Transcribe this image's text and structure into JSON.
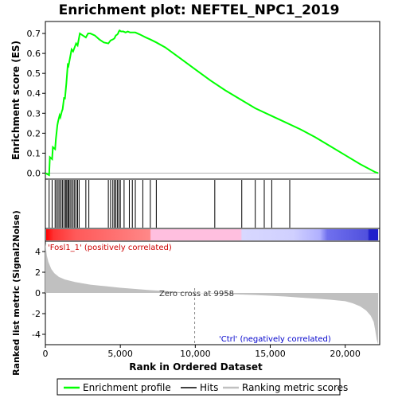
{
  "chart_data": {
    "type": "line",
    "title": "Enrichment plot: NEFTEL_NPC1_2019",
    "panels": {
      "es": {
        "ylabel": "Enrichment score (ES)",
        "ylim": [
          -0.03,
          0.76
        ],
        "yticks": [
          0.0,
          0.1,
          0.2,
          0.3,
          0.4,
          0.5,
          0.6,
          0.7
        ],
        "ytick_labels": [
          "0.0",
          "0.1",
          "0.2",
          "0.3",
          "0.4",
          "0.5",
          "0.6",
          "0.7"
        ],
        "grid": false
      },
      "metric": {
        "ylabel": "Ranked list metric (Signal2Noise)",
        "ylim": [
          -5,
          5
        ],
        "yticks": [
          -4,
          -2,
          0,
          2,
          4
        ],
        "ytick_labels": [
          "-4",
          "-2",
          "0",
          "2",
          "4"
        ]
      }
    },
    "xlabel": "Rank in Ordered Dataset",
    "xlim": [
      0,
      22300
    ],
    "xticks": [
      0,
      5000,
      10000,
      15000,
      20000
    ],
    "xtick_labels": [
      "0",
      "5,000",
      "10,000",
      "15,000",
      "20,000"
    ],
    "series": [
      {
        "name": "Enrichment profile",
        "color": "#00ff00",
        "x": [
          0,
          250,
          300,
          450,
          500,
          650,
          700,
          800,
          850,
          950,
          1000,
          1100,
          1150,
          1250,
          1300,
          1400,
          1450,
          1500,
          1550,
          1650,
          1750,
          1850,
          1950,
          2050,
          2150,
          2300,
          2500,
          2700,
          2850,
          3000,
          3300,
          3600,
          3900,
          4200,
          4350,
          4500,
          4600,
          4700,
          4800,
          4850,
          4900,
          4950,
          5050,
          5200,
          5350,
          5500,
          5650,
          5800,
          6000,
          6300,
          6700,
          7000,
          7400,
          8000,
          9000,
          10000,
          11000,
          12000,
          13000,
          14000,
          15000,
          16000,
          17000,
          18000,
          19000,
          20000,
          21000,
          22000,
          22200
        ],
        "values": [
          0.0,
          -0.01,
          0.08,
          0.07,
          0.13,
          0.12,
          0.17,
          0.24,
          0.26,
          0.29,
          0.28,
          0.31,
          0.32,
          0.38,
          0.37,
          0.45,
          0.5,
          0.55,
          0.54,
          0.58,
          0.62,
          0.61,
          0.63,
          0.65,
          0.64,
          0.7,
          0.69,
          0.68,
          0.7,
          0.7,
          0.69,
          0.67,
          0.655,
          0.65,
          0.665,
          0.67,
          0.675,
          0.69,
          0.695,
          0.7,
          0.71,
          0.715,
          0.71,
          0.71,
          0.705,
          0.71,
          0.705,
          0.705,
          0.705,
          0.695,
          0.68,
          0.67,
          0.655,
          0.63,
          0.575,
          0.52,
          0.465,
          0.415,
          0.37,
          0.325,
          0.29,
          0.255,
          0.22,
          0.18,
          0.135,
          0.09,
          0.045,
          0.005,
          0.0
        ]
      },
      {
        "name": "Hits",
        "color": "#000000",
        "positions": [
          250,
          450,
          650,
          750,
          850,
          950,
          1050,
          1150,
          1250,
          1350,
          1420,
          1500,
          1560,
          1650,
          1750,
          1850,
          1950,
          2050,
          2150,
          2250,
          2700,
          2900,
          4200,
          4350,
          4500,
          4600,
          4700,
          4800,
          4900,
          5000,
          5250,
          5600,
          5800,
          6000,
          6500,
          7000,
          7400,
          11300,
          13100,
          14000,
          14600,
          15100,
          16300
        ]
      },
      {
        "name": "Ranking metric scores",
        "color": "#c0c0c0",
        "x": [
          0,
          100,
          200,
          400,
          600,
          900,
          1300,
          2000,
          3000,
          4000,
          5000,
          6000,
          7000,
          8000,
          9000,
          9958,
          11000,
          12000,
          13000,
          14000,
          15000,
          16000,
          17000,
          18000,
          19000,
          20000,
          20500,
          21000,
          21400,
          21700,
          21900,
          22000,
          22100,
          22200
        ],
        "values": [
          4.8,
          3.6,
          3.0,
          2.3,
          1.9,
          1.55,
          1.3,
          1.05,
          0.8,
          0.65,
          0.5,
          0.38,
          0.27,
          0.18,
          0.08,
          0.0,
          -0.05,
          -0.1,
          -0.15,
          -0.2,
          -0.27,
          -0.35,
          -0.45,
          -0.55,
          -0.65,
          -0.8,
          -1.0,
          -1.3,
          -1.7,
          -2.2,
          -2.8,
          -3.6,
          -4.5,
          -5.0
        ]
      }
    ],
    "color_bar": {
      "stops": [
        {
          "x": 0,
          "color": "#ff0000"
        },
        {
          "x": 500,
          "color": "#ff3333"
        },
        {
          "x": 2000,
          "color": "#ff5a5a"
        },
        {
          "x": 4500,
          "color": "#ff7070"
        },
        {
          "x": 6950,
          "color": "#ff8888"
        },
        {
          "x": 7000,
          "color": "#ffbfdf"
        },
        {
          "x": 13000,
          "color": "#ffbfdf"
        },
        {
          "x": 13100,
          "color": "#d8d8ff"
        },
        {
          "x": 16500,
          "color": "#d0d0ff"
        },
        {
          "x": 18300,
          "color": "#b0b0ff"
        },
        {
          "x": 18800,
          "color": "#7070ee"
        },
        {
          "x": 21500,
          "color": "#5050dd"
        },
        {
          "x": 21600,
          "color": "#2020cc"
        },
        {
          "x": 22200,
          "color": "#2020cc"
        }
      ]
    },
    "annotations": {
      "positive": "'Fosl1_1' (positively correlated)",
      "zero_cross": "Zero cross at 9958",
      "negative": "'Ctrl' (negatively correlated)",
      "zero_cross_rank": 9958
    },
    "legend": {
      "placement": "bottom",
      "items": [
        "Enrichment profile",
        "Hits",
        "Ranking metric scores"
      ]
    }
  }
}
